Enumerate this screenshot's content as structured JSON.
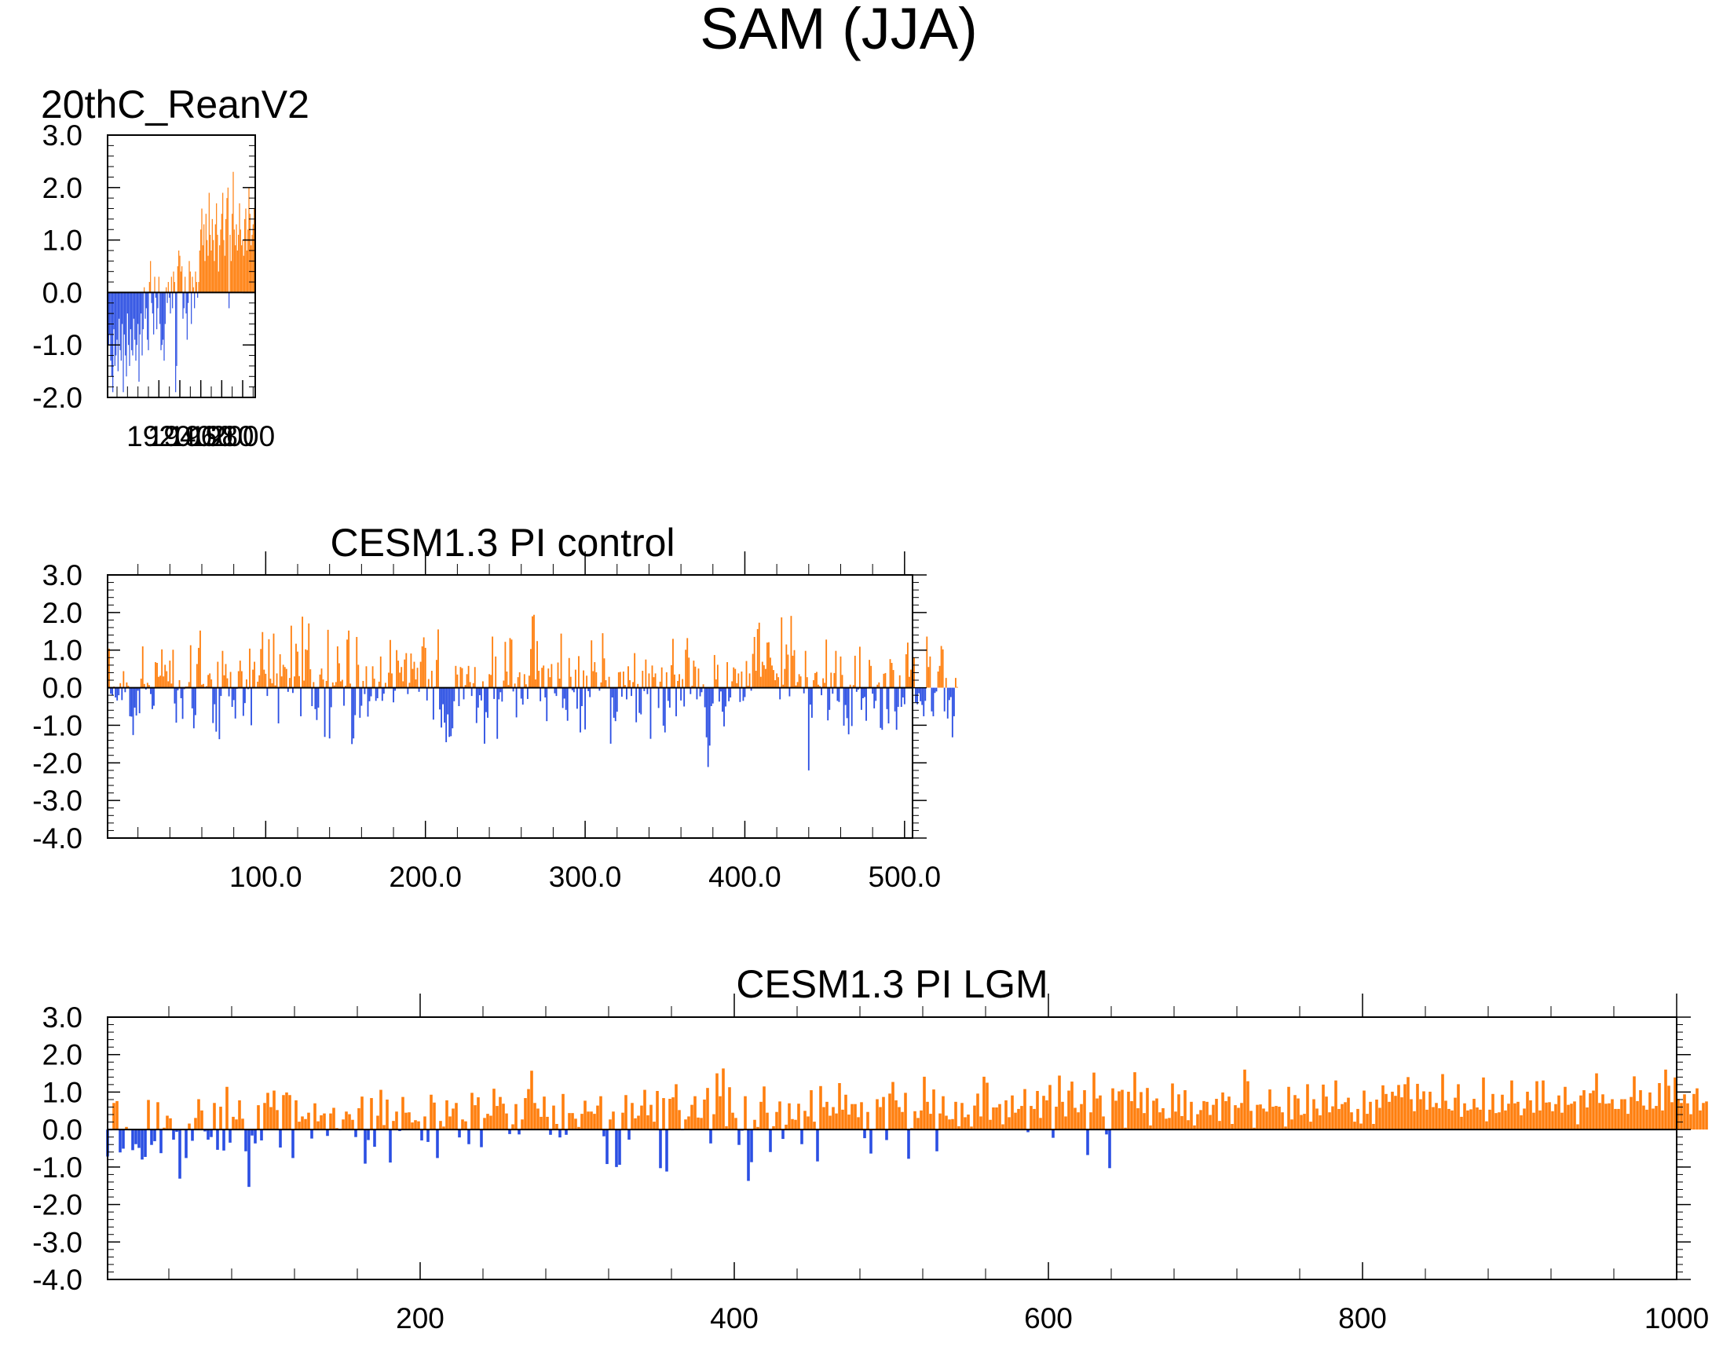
{
  "page": {
    "title": "SAM (JJA)"
  },
  "colors": {
    "positive": "#ff7f0e",
    "negative": "#2b4fe3",
    "axis": "#000000"
  },
  "chart_data": [
    {
      "type": "bar",
      "title": "20thC_ReanV2",
      "xlabel": "",
      "ylabel": "",
      "xlim": [
        1871,
        2012
      ],
      "ylim": [
        -2.0,
        3.0
      ],
      "yticks": [
        -2.0,
        -1.0,
        0.0,
        1.0,
        2.0,
        3.0
      ],
      "ytick_labels": [
        "-2.0",
        "-1.0",
        "0.0",
        "1.0",
        "2.0",
        "3.0"
      ],
      "xticks": [
        1920,
        1940,
        1960,
        1980,
        2000
      ],
      "xtick_labels": [
        "1920",
        "1940",
        "1960",
        "1980",
        "2000"
      ],
      "x_start": 1871,
      "x_step": 1,
      "values": [
        -0.6,
        -1.0,
        -0.8,
        -1.3,
        -1.6,
        -1.9,
        -0.7,
        -1.4,
        -1.2,
        -0.9,
        -1.5,
        -0.5,
        -1.1,
        -1.3,
        -0.6,
        -1.9,
        -0.8,
        -1.2,
        -1.6,
        -0.4,
        -1.0,
        -1.4,
        -0.7,
        -1.1,
        -1.2,
        -0.5,
        -0.9,
        -1.3,
        -1.0,
        -0.6,
        -1.7,
        -0.8,
        -0.4,
        -1.2,
        -0.7,
        0.1,
        -0.5,
        -0.3,
        -0.9,
        -1.1,
        0.2,
        0.6,
        -0.2,
        -0.4,
        -0.8,
        0.3,
        -0.1,
        -0.7,
        -0.3,
        0.3,
        -0.6,
        -1.1,
        -1.0,
        -0.9,
        -1.3,
        -0.6,
        0.1,
        -0.2,
        0.2,
        -0.1,
        -0.4,
        0.3,
        -0.3,
        0.4,
        0.2,
        -1.9,
        -1.4,
        0.5,
        0.8,
        0.7,
        0.4,
        0.5,
        -0.5,
        -0.3,
        0.3,
        -0.4,
        -0.9,
        -0.2,
        0.6,
        0.4,
        -0.6,
        0.3,
        0.1,
        -0.3,
        0.4,
        0.2,
        -0.1,
        0.2,
        0.8,
        1.2,
        1.6,
        0.9,
        1.3,
        0.6,
        1.5,
        1.0,
        0.7,
        1.9,
        1.1,
        0.8,
        1.4,
        1.0,
        0.6,
        1.3,
        1.7,
        1.1,
        0.4,
        0.9,
        1.2,
        1.5,
        1.9,
        1.0,
        0.7,
        1.4,
        1.8,
        2.0,
        -0.3,
        1.1,
        0.6,
        1.5,
        2.3,
        1.2,
        0.9,
        1.3,
        0.8,
        1.1,
        1.7,
        1.2,
        0.9,
        1.0,
        0.7,
        1.4,
        1.6,
        0.8,
        1.2,
        2.0,
        1.5,
        0.9,
        1.1,
        1.3,
        1.6,
        0.8
      ]
    },
    {
      "type": "bar",
      "title": "CESM1.3 PI control",
      "xlabel": "",
      "ylabel": "",
      "xlim": [
        1,
        505
      ],
      "ylim": [
        -4.0,
        3.0
      ],
      "yticks": [
        -4.0,
        -3.0,
        -2.0,
        -1.0,
        0.0,
        1.0,
        2.0,
        3.0
      ],
      "ytick_labels": [
        "-4.0",
        "-3.0",
        "-2.0",
        "-1.0",
        "0.0",
        "1.0",
        "2.0",
        "3.0"
      ],
      "xticks": [
        100,
        200,
        300,
        400,
        500
      ],
      "xtick_labels": [
        "100.0",
        "200.0",
        "300.0",
        "400.0",
        "500.0"
      ],
      "x_start": 1,
      "x_step": 1,
      "values": [
        -0.05,
        1.04,
        -0.16,
        -0.2,
        0.03,
        -0.26,
        -0.34,
        -0.2,
        0.12,
        -0.33,
        0.44,
        -0.12,
        0.14,
        0.05,
        -0.76,
        -0.77,
        -1.26,
        -0.53,
        -0.74,
        -0.08,
        -0.68,
        0.24,
        1.1,
        0.1,
        -0.05,
        0.13,
        0.07,
        -0.17,
        -0.57,
        -0.48,
        0.68,
        0.66,
        0.29,
        0.32,
        1.02,
        0.3,
        0.61,
        0.44,
        0.17,
        0.72,
        0.11,
        1.01,
        -0.42,
        -0.93,
        -0.07,
        0.2,
        -0.28,
        -0.83,
        -0.04,
        0.03,
        0.03,
        0.15,
        1.13,
        -0.55,
        -1.08,
        -0.73,
        0.63,
        1.06,
        1.52,
        0.08,
        0.1,
        0.02,
        0.04,
        0.34,
        0.38,
        0.22,
        -0.94,
        -0.44,
        -1.17,
        0.69,
        -1.37,
        -0.22,
        0.98,
        0.33,
        0.63,
        0.25,
        -0.23,
        0.42,
        -0.51,
        -0.33,
        -0.82,
        -0.03,
        0.44,
        0.72,
        0.44,
        -0.75,
        -0.41,
        0.22,
        -0.04,
        1.04,
        -1.0,
        0.48,
        0.69,
        0.02,
        0.16,
        0.33,
        1.03,
        1.48,
        0.48,
        0.37,
        -0.22,
        1.29,
        0.24,
        0.12,
        1.44,
        0.06,
        0.38,
        -0.95,
        0.89,
        0.3,
        0.61,
        0.55,
        0.5,
        -0.11,
        0.26,
        1.65,
        -0.14,
        0.3,
        1.17,
        0.96,
        0.31,
        -0.76,
        1.89,
        0.19,
        1.02,
        1.0,
        1.71,
        0.49,
        -0.49,
        0.15,
        -0.57,
        -0.86,
        -0.53,
        0.35,
        0.51,
        0.22,
        -1.31,
        0.18,
        1.54,
        -1.35,
        -0.52,
        0.14,
        0.06,
        0.15,
        1.1,
        0.65,
        0.17,
        0.21,
        -0.48,
        0.05,
        1.28,
        1.52,
        0.11,
        -1.5,
        -1.35,
        -0.73,
        1.35,
        0.61,
        -0.8,
        -0.48,
        0.18,
        -0.17,
        0.57,
        -0.77,
        -0.36,
        -0.23,
        0.57,
        0.24,
        -0.35,
        -0.28,
        0.16,
        0.83,
        -0.35,
        -0.16,
        0.13,
        0.02,
        0.4,
        1.27,
        0.38,
        -0.39,
        -0.08,
        1.0,
        0.72,
        0.4,
        0.55,
        0.17,
        0.75,
        0.92,
        -0.17,
        0.13,
        0.91,
        0.5,
        0.69,
        0.22,
        0.53,
        -0.11,
        0.69,
        1.1,
        1.34,
        1.06,
        -0.34,
        0.23,
        0.01,
        0.45,
        -0.85,
        0.03,
        0.74,
        1.55,
        -0.58,
        -1.06,
        -0.44,
        -0.93,
        -1.45,
        -0.71,
        -1.31,
        -1.29,
        -1.08,
        -0.36,
        0.58,
        0.35,
        -0.49,
        0.55,
        0.52,
        -0.31,
        0.07,
        0.36,
        0.58,
        0.15,
        -0.22,
        0.12,
        0.55,
        -0.94,
        -0.53,
        -0.2,
        -0.34,
        0.17,
        -1.49,
        -0.65,
        -0.8,
        0.36,
        0.34,
        1.36,
        -0.3,
        0.83,
        -1.36,
        -0.31,
        -0.12,
        -0.37,
        0.19,
        1.22,
        0.43,
        0.07,
        1.32,
        1.28,
        -0.1,
        0.11,
        -0.79,
        0.28,
        0.41,
        -0.29,
        -0.45,
        0.36,
        0.09,
        -0.3,
        0.32,
        1.03,
        1.9,
        1.94,
        0.22,
        1.24,
        0.45,
        -0.36,
        0.53,
        0.59,
        -0.26,
        -0.89,
        0.51,
        0.28,
        0.63,
        0.01,
        -0.15,
        -0.22,
        0.67,
        0.24,
        1.44,
        -0.54,
        -0.29,
        -0.59,
        -0.88,
        0.79,
        0.29,
        -0.07,
        -0.12,
        0.48,
        -0.56,
        0.84,
        -1.19,
        -0.49,
        0.46,
        -1.11,
        0.32,
        -0.09,
        -0.25,
        1.26,
        0.44,
        0.68,
        0.41,
        -0.02,
        -0.08,
        0.14,
        1.45,
        0.78,
        0.2,
        0.0,
        0.29,
        -1.49,
        -0.26,
        -0.8,
        -0.89,
        -0.64,
        0.41,
        0.42,
        -0.24,
        0.43,
        0.07,
        -0.31,
        0.57,
        0.2,
        -0.22,
        0.15,
        0.92,
        -0.92,
        0.1,
        -0.67,
        -0.71,
        0.45,
        -0.09,
        0.75,
        -0.17,
        0.38,
        -1.36,
        0.59,
        0.28,
        0.38,
        0.03,
        -0.54,
        0.16,
        0.54,
        -1.01,
        -1.19,
        0.41,
        -0.35,
        -0.53,
        0.6,
        1.3,
        0.35,
        -0.76,
        0.18,
        0.36,
        -0.34,
        0.23,
        -0.5,
        1.01,
        1.32,
        0.8,
        -0.17,
        0.05,
        0.72,
        0.56,
        -0.31,
        0.51,
        -0.23,
        -0.12,
        0.09,
        -0.52,
        -1.32,
        -2.11,
        -1.54,
        -0.49,
        -0.42,
        0.87,
        0.22,
        0.61,
        -0.37,
        -0.1,
        -0.64,
        -1.03,
        -0.5,
        0.68,
        -0.36,
        -0.26,
        0.17,
        0.54,
        0.5,
        0.12,
        0.38,
        -0.38,
        0.43,
        -0.35,
        -0.25,
        0.71,
        0.05,
        0.38,
        -0.08,
        0.9,
        1.35,
        0.45,
        1.56,
        1.73,
        0.29,
        0.69,
        0.6,
        0.5,
        1.2,
        1.21,
        0.8,
        0.59,
        0.47,
        0.2,
        0.38,
        0.28,
        -0.31,
        1.87,
        0.08,
        0.5,
        1.15,
        0.88,
        -0.23,
        1.91,
        0.85,
        1.0,
        0.06,
        0.15,
        0.36,
        0.3,
        -0.01,
        -0.15,
        0.98,
        0.28,
        -2.2,
        -0.45,
        -0.8,
        0.2,
        0.39,
        0.42,
        0.08,
        0.04,
        -0.2,
        0.25,
        0.13,
        1.28,
        -0.87,
        -0.59,
        0.4,
        -0.16,
        0.39,
        0.98,
        -0.35,
        -0.38,
        0.83,
        0.34,
        -1.01,
        -0.46,
        -0.81,
        -1.24,
        0.08,
        -1.02,
        0.07,
        0.85,
        -0.11,
        -0.05,
        1.09,
        -0.59,
        -0.28,
        -0.25,
        -0.88,
        0.01,
        0.74,
        0.58,
        -0.16,
        -0.55,
        -0.35,
        0.08,
        0.14,
        -1.07,
        -1.12,
        0.37,
        0.39,
        -0.57,
        -0.95,
        0.76,
        0.66,
        0.47,
        -0.63,
        -1.12,
        -0.51,
        0.33,
        -0.51,
        -0.26,
        -0.44,
        0.89,
        1.2,
        0.29,
        0.48,
        0.25,
        0.8,
        -0.39,
        -0.44,
        -0.15,
        -0.36,
        -0.46,
        -0.76,
        -0.35,
        1.36,
        0.55,
        0.83,
        -0.63,
        -0.76,
        -0.14,
        -0.1,
        0.43,
        0.58,
        1.11,
        1.02,
        -0.63,
        0.26,
        -0.82,
        -0.33,
        -0.25,
        -1.32,
        -0.76,
        0.26,
        0.02
      ]
    },
    {
      "type": "bar",
      "title": "CESM1.3 PI LGM",
      "xlabel": "",
      "ylabel": "",
      "xlim": [
        1,
        1000
      ],
      "ylim": [
        -4.0,
        3.0
      ],
      "yticks": [
        -4.0,
        -3.0,
        -2.0,
        -1.0,
        0.0,
        1.0,
        2.0,
        3.0
      ],
      "ytick_labels": [
        "-4.0",
        "-3.0",
        "-2.0",
        "-1.0",
        "0.0",
        "1.0",
        "2.0",
        "3.0"
      ],
      "xticks": [
        200,
        400,
        600,
        800,
        1000
      ],
      "xtick_labels": [
        "200",
        "400",
        "600",
        "800",
        "1000"
      ],
      "x_start": 1,
      "x_step": 2,
      "values": [
        -0.72,
        -0.02,
        0.71,
        0.76,
        -0.61,
        -0.51,
        0.07,
        -0.02,
        -0.55,
        -0.39,
        -0.49,
        -0.8,
        -0.73,
        0.79,
        -0.41,
        -0.31,
        0.73,
        -0.63,
        0.05,
        0.37,
        0.3,
        -0.27,
        -0.06,
        -1.31,
        0.02,
        -0.76,
        0.16,
        -0.3,
        0.31,
        0.81,
        0.51,
        -0.05,
        -0.27,
        -0.2,
        0.71,
        -0.54,
        0.61,
        -0.56,
        1.14,
        -0.35,
        0.34,
        0.27,
        0.78,
        0.29,
        -0.58,
        -1.53,
        -0.16,
        -0.37,
        0.65,
        -0.29,
        0.71,
        0.98,
        0.6,
        1.04,
        0.52,
        -0.48,
        0.92,
        0.99,
        0.92,
        -0.76,
        0.78,
        0.21,
        0.35,
        0.28,
        0.45,
        -0.24,
        0.7,
        0.22,
        0.38,
        0.43,
        -0.17,
        0.43,
        0.58,
        0.04,
        -0.02,
        0.27,
        0.48,
        0.41,
        0.26,
        -0.2,
        0.57,
        0.88,
        -0.91,
        -0.28,
        0.84,
        -0.46,
        0.37,
        1.06,
        0.12,
        0.8,
        -0.88,
        0.23,
        0.48,
        -0.04,
        0.87,
        0.45,
        0.46,
        0.19,
        0.25,
        0.22,
        -0.29,
        0.35,
        -0.33,
        0.93,
        0.72,
        -0.76,
        0.23,
        0.08,
        0.78,
        0.35,
        0.56,
        0.71,
        -0.21,
        0.27,
        0.22,
        -0.39,
        0.98,
        0.65,
        0.86,
        -0.47,
        0.31,
        0.42,
        0.37,
        1.09,
        0.63,
        0.87,
        0.69,
        0.43,
        -0.12,
        0.14,
        0.68,
        -0.13,
        0.27,
        0.84,
        1.08,
        1.57,
        0.71,
        0.56,
        0.34,
        0.88,
        0.34,
        -0.14,
        0.64,
        0.15,
        -0.21,
        0.95,
        -0.14,
        0.44,
        0.44,
        0.29,
        0.07,
        0.42,
        0.77,
        0.48,
        0.48,
        0.42,
        0.64,
        0.89,
        -0.18,
        -0.92,
        0.27,
        0.48,
        -1.0,
        -0.94,
        0.45,
        0.92,
        -0.27,
        0.71,
        0.3,
        0.37,
        0.64,
        1.06,
        0.38,
        0.66,
        0.21,
        1.03,
        -1.03,
        0.84,
        -1.12,
        0.82,
        0.86,
        1.21,
        0.52,
        -0.02,
        0.27,
        0.35,
        0.66,
        0.89,
        0.32,
        0.31,
        0.8,
        1.11,
        -0.37,
        0.41,
        1.5,
        0.89,
        1.63,
        0.09,
        1.13,
        0.45,
        0.31,
        -0.41,
        -0.03,
        0.89,
        -1.37,
        -0.87,
        0.26,
        0.07,
        0.74,
        1.15,
        0.45,
        -0.6,
        0.09,
        0.47,
        0.75,
        -0.25,
        0.13,
        0.7,
        0.28,
        0.26,
        0.69,
        -0.39,
        0.5,
        0.35,
        1.05,
        0.21,
        -0.85,
        1.16,
        0.6,
        0.74,
        0.37,
        0.6,
        0.43,
        1.24,
        0.53,
        0.93,
        0.4,
        0.68,
        0.68,
        0.33,
        0.73,
        -0.23,
        0.47,
        -0.64,
        0.02,
        0.81,
        0.6,
        0.87,
        -0.28,
        0.96,
        1.27,
        0.78,
        0.6,
        0.47,
        0.98,
        -0.78,
        0.04,
        0.49,
        0.31,
        0.51,
        1.41,
        0.74,
        0.42,
        1.07,
        -0.58,
        0.43,
        0.89,
        0.37,
        0.27,
        0.28,
        0.74,
        0.09,
        0.71,
        0.33,
        0.4,
        0.08,
        0.64,
        0.96,
        0.35,
        1.41,
        1.25,
        0.26,
        0.59,
        0.59,
        0.68,
        0.14,
        0.78,
        0.33,
        0.91,
        0.45,
        0.55,
        0.63,
        1.08,
        -0.07,
        0.63,
        0.55,
        1.03,
        0.31,
        0.9,
        0.78,
        1.19,
        -0.22,
        0.61,
        1.44,
        0.74,
        0.35,
        1.04,
        1.28,
        0.58,
        0.46,
        0.68,
        1.05,
        -0.68,
        0.46,
        1.52,
        0.83,
        0.91,
        0.35,
        -0.13,
        -1.03,
        1.1,
        0.77,
        1.02,
        1.06,
        0.05,
        1.01,
        0.76,
        1.53,
        0.57,
        1.0,
        0.44,
        1.11,
        0.11,
        0.77,
        0.83,
        0.46,
        0.57,
        0.29,
        0.31,
        1.23,
        0.48,
        0.94,
        0.36,
        1.05,
        0.25,
        0.74,
        0.11,
        0.41,
        0.52,
        0.76,
        0.74,
        0.39,
        0.66,
        0.82,
        0.23,
        0.99,
        0.76,
        0.88,
        0.15,
        0.65,
        0.58,
        0.71,
        1.6,
        1.29,
        0.5,
        0.05,
        0.66,
        0.67,
        0.56,
        0.48,
        1.07,
        0.61,
        0.63,
        0.61,
        0.46,
        0.08,
        1.14,
        0.27,
        0.92,
        0.83,
        0.39,
        0.42,
        1.21,
        0.21,
        0.81,
        0.56,
        0.38,
        1.2,
        0.88,
        0.46,
        0.62,
        1.31,
        0.55,
        0.68,
        0.73,
        0.85,
        0.46,
        0.21,
        0.55,
        0.16,
        1.04,
        0.42,
        0.74,
        0.15,
        0.8,
        0.58,
        1.18,
        0.95,
        0.74,
        1.01,
        0.9,
        1.19,
        0.86,
        1.21,
        1.4,
        0.81,
        0.49,
        1.22,
        0.81,
        1.02,
        0.53,
        1.01,
        0.6,
        0.71,
        0.57,
        1.48,
        0.77,
        0.55,
        0.51,
        0.85,
        1.21,
        0.34,
        0.7,
        0.51,
        0.54,
        0.82,
        0.59,
        0.53,
        1.39,
        0.22,
        0.53,
        0.95,
        0.44,
        0.46,
        0.93,
        0.51,
        0.69,
        1.31,
        0.7,
        0.74,
        0.38,
        0.56,
        1.01,
        0.78,
        0.45,
        1.29,
        0.51,
        1.31,
        0.72,
        0.73,
        0.49,
        0.68,
        0.91,
        0.45,
        1.14,
        0.66,
        0.69,
        0.75,
        0.14,
        0.91,
        1.05,
        0.59,
        0.97,
        1.04,
        1.5,
        0.71,
        0.94,
        0.69,
        0.7,
        0.81,
        0.55,
        0.55,
        0.81,
        0.81,
        0.42,
        0.87,
        1.42,
        0.76,
        1.05,
        0.64,
        0.53,
        0.99,
        0.56,
        0.63,
        1.24,
        0.51,
        1.6,
        1.17,
        0.73,
        1.39,
        0.82,
        0.71,
        0.94,
        0.7,
        0.41,
        0.95,
        1.1,
        0.51,
        0.71,
        0.75
      ]
    }
  ]
}
